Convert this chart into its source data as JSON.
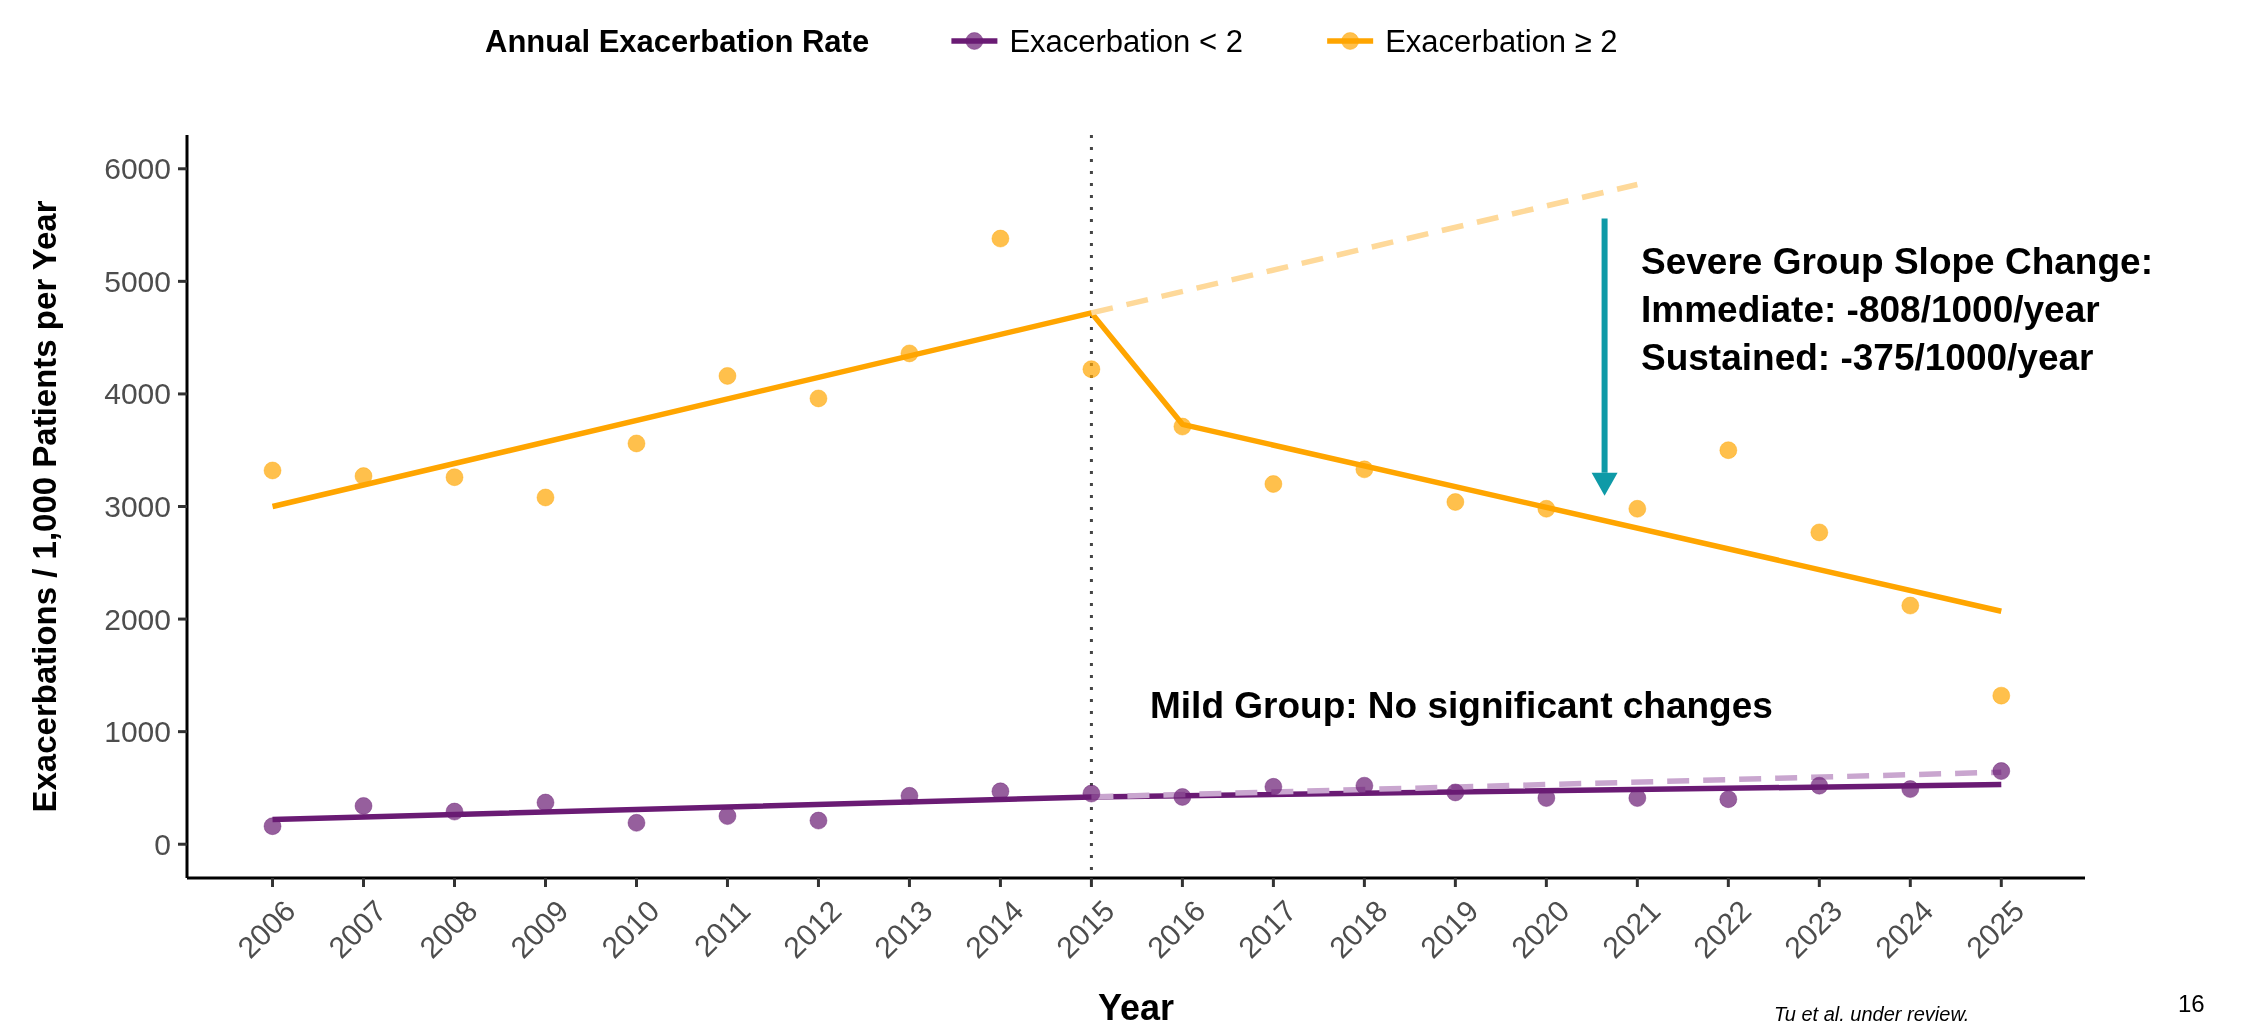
{
  "chart_data": {
    "type": "scatter",
    "legend_title": "Annual Exacerbation Rate",
    "xlabel": "Year",
    "ylabel": "Exacerbations / 1,000 Patients per Year",
    "x": [
      2006,
      2007,
      2008,
      2009,
      2010,
      2011,
      2012,
      2013,
      2014,
      2015,
      2016,
      2017,
      2018,
      2019,
      2020,
      2021,
      2022,
      2023,
      2024,
      2025
    ],
    "series": [
      {
        "name": "Exacerbation < 2",
        "color": "#6a1b74",
        "marker": "circle",
        "values": [
          160,
          340,
          290,
          370,
          190,
          250,
          210,
          430,
          470,
          450,
          420,
          510,
          520,
          460,
          410,
          410,
          400,
          520,
          490,
          650
        ]
      },
      {
        "name": "Exacerbation ≥ 2",
        "color": "#ffa500",
        "marker": "circle",
        "values": [
          3320,
          3270,
          3260,
          3080,
          3560,
          4160,
          3960,
          4360,
          5380,
          4220,
          3710,
          3200,
          3330,
          3040,
          2980,
          2980,
          3500,
          2770,
          2120,
          1320
        ]
      },
      {
        "type": "line",
        "color": "#6a1b74",
        "marker": "none",
        "line_style": "solid",
        "x": [
          2006,
          2015,
          2016,
          2025
        ],
        "values": [
          220,
          420,
          430,
          530
        ]
      },
      {
        "type": "line",
        "color": "#ffa500",
        "marker": "none",
        "line_style": "solid",
        "x": [
          2006,
          2015,
          2016,
          2025
        ],
        "values": [
          3000,
          4720,
          3730,
          2070
        ]
      },
      {
        "type": "line",
        "color": "#c9a6cf",
        "marker": "none",
        "line_style": "dashed",
        "x": [
          2015,
          2025
        ],
        "values": [
          420,
          640
        ]
      },
      {
        "type": "line",
        "color": "#fed99a",
        "marker": "none",
        "line_style": "dashed",
        "x": [
          2015,
          2021
        ],
        "values": [
          4720,
          5860
        ]
      }
    ],
    "xlim": [
      2005.06,
      2025.92
    ],
    "xticks": [
      2006,
      2007,
      2008,
      2009,
      2010,
      2011,
      2012,
      2013,
      2014,
      2015,
      2016,
      2017,
      2018,
      2019,
      2020,
      2021,
      2022,
      2023,
      2024,
      2025
    ],
    "ylim": [
      -300,
      6300
    ],
    "yticks": [
      0,
      1000,
      2000,
      3000,
      4000,
      5000,
      6000
    ],
    "grid": false,
    "legend": "top",
    "ref_lines": [
      {
        "axis": "x",
        "value": 2015,
        "color": "#444444",
        "line_style": "dotted"
      }
    ],
    "annotations": [
      "Severe Group Slope Change:\nImmediate: -808/1000/year\nSustained: -375/1000/year",
      "Mild Group: No significant changes",
      "Tu et al. under review.",
      "16"
    ]
  }
}
